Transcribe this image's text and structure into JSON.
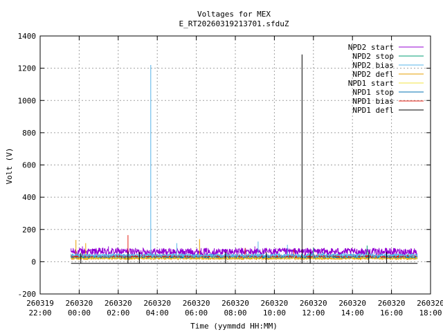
{
  "chart_data": {
    "type": "line",
    "title": "Voltages for MEX",
    "subtitle": "E_RT20260319213701.sfduZ",
    "xlabel": "Time (yymmdd HH:MM)",
    "ylabel": "Volt (V)",
    "ylim": [
      -200,
      1400
    ],
    "yticks": [
      "-200",
      "0",
      "200",
      "400",
      "600",
      "800",
      "1000",
      "1200",
      "1400"
    ],
    "xlim": [
      "2026-03-19 22:00",
      "2026-03-20 18:00"
    ],
    "xticks": [
      {
        "date": "260319",
        "time": "22:00"
      },
      {
        "date": "260320",
        "time": "00:00"
      },
      {
        "date": "260320",
        "time": "02:00"
      },
      {
        "date": "260320",
        "time": "04:00"
      },
      {
        "date": "260320",
        "time": "06:00"
      },
      {
        "date": "260320",
        "time": "08:00"
      },
      {
        "date": "260320",
        "time": "10:00"
      },
      {
        "date": "260320",
        "time": "12:00"
      },
      {
        "date": "260320",
        "time": "14:00"
      },
      {
        "date": "260320",
        "time": "16:00"
      },
      {
        "date": "260320",
        "time": "18:00"
      }
    ],
    "grid": true,
    "legend_position": "top-right",
    "series": [
      {
        "name": "NPD2 start",
        "color": "#9400d3",
        "base": 60,
        "band": [
          40,
          85
        ],
        "spikes": [
          {
            "t": "2026-03-20 00:10",
            "v": 95
          },
          {
            "t": "2026-03-20 01:30",
            "v": 95
          },
          {
            "t": "2026-03-20 09:00",
            "v": 95
          }
        ]
      },
      {
        "name": "NPD2 stop",
        "color": "#009e73",
        "base": 30,
        "band": [
          20,
          40
        ],
        "spikes": [
          {
            "t": "2026-03-20 14:45",
            "v": 100
          },
          {
            "t": "2026-03-20 12:00",
            "v": 85
          }
        ]
      },
      {
        "name": "NPD2 bias",
        "color": "#56b4e9",
        "base": 40,
        "band": [
          30,
          50
        ],
        "spikes": [
          {
            "t": "2026-03-20 03:40",
            "v": 1220
          },
          {
            "t": "2026-03-20 05:00",
            "v": 115
          },
          {
            "t": "2026-03-20 09:10",
            "v": 125
          },
          {
            "t": "2026-03-20 10:40",
            "v": 105
          }
        ]
      },
      {
        "name": "NPD2 defl",
        "color": "#e69f00",
        "base": 20,
        "band": [
          15,
          25
        ],
        "spikes": [
          {
            "t": "2026-03-19 23:50",
            "v": 135
          },
          {
            "t": "2026-03-20 06:10",
            "v": 140
          },
          {
            "t": "2026-03-20 00:20",
            "v": 115
          }
        ]
      },
      {
        "name": "NPD1 start",
        "color": "#f0e442",
        "base": 25,
        "band": [
          22,
          28
        ],
        "spikes": []
      },
      {
        "name": "NPD1 stop",
        "color": "#0072b2",
        "base": 30,
        "band": [
          25,
          35
        ],
        "spikes": [
          {
            "t": "2026-03-20 12:30",
            "v": 60
          }
        ]
      },
      {
        "name": "NPD1 bias",
        "color": "#e51e10",
        "base": 35,
        "band": [
          28,
          42
        ],
        "spikes": [
          {
            "t": "2026-03-20 02:30",
            "v": 165
          },
          {
            "t": "2026-03-20 08:30",
            "v": 85
          },
          {
            "t": "2026-03-20 11:00",
            "v": 75
          }
        ]
      },
      {
        "name": "NPD1 defl",
        "color": "#000000",
        "base": -10,
        "band": [
          -10,
          -10
        ],
        "spikes": [
          {
            "t": "2026-03-20 11:25",
            "v": 1285
          },
          {
            "t": "2026-03-20 00:05",
            "v": 55
          },
          {
            "t": "2026-03-20 02:30",
            "v": 60
          },
          {
            "t": "2026-03-20 03:05",
            "v": 60
          },
          {
            "t": "2026-03-20 07:30",
            "v": 60
          },
          {
            "t": "2026-03-20 09:35",
            "v": 60
          },
          {
            "t": "2026-03-20 11:50",
            "v": 60
          },
          {
            "t": "2026-03-20 14:50",
            "v": 60
          },
          {
            "t": "2026-03-20 15:45",
            "v": 60
          }
        ]
      }
    ],
    "data_span": [
      "2026-03-19 23:35",
      "2026-03-20 17:20"
    ]
  }
}
